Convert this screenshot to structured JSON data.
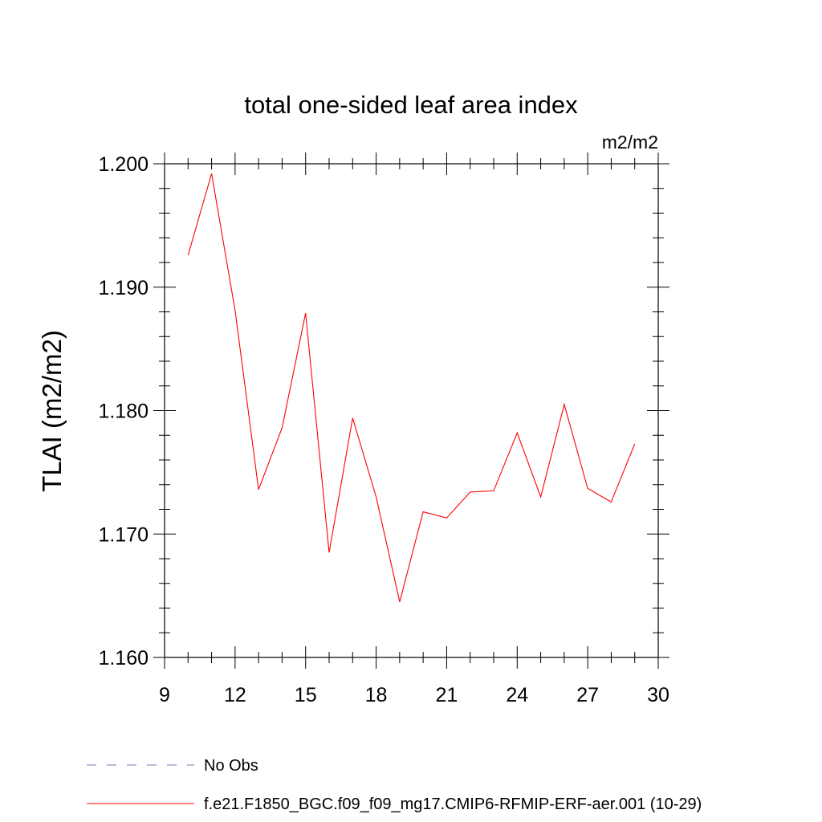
{
  "chart_data": {
    "type": "line",
    "title": "total one-sided leaf area index",
    "units": "m2/m2",
    "ylabel": "TLAI  (m2/m2)",
    "xlabel": "",
    "xlim": [
      9,
      30
    ],
    "ylim": [
      1.16,
      1.2
    ],
    "xticks": [
      9,
      12,
      15,
      18,
      21,
      24,
      27,
      30
    ],
    "xtick_labels": [
      "9",
      "12",
      "15",
      "18",
      "21",
      "24",
      "27",
      "30"
    ],
    "yticks": [
      1.16,
      1.17,
      1.18,
      1.19,
      1.2
    ],
    "ytick_labels": [
      "1.160",
      "1.170",
      "1.180",
      "1.190",
      "1.200"
    ],
    "grid": false,
    "series": [
      {
        "name": "f.e21.F1850_BGC.f09_f09_mg17.CMIP6-RFMIP-ERF-aer.001 (10-29)",
        "color": "#ff0000",
        "x": [
          10,
          11,
          12,
          13,
          14,
          15,
          16,
          17,
          18,
          19,
          20,
          21,
          22,
          23,
          24,
          25,
          26,
          27,
          28,
          29
        ],
        "y": [
          1.1926,
          1.1992,
          1.1881,
          1.1736,
          1.1786,
          1.1879,
          1.1685,
          1.1794,
          1.173,
          1.1645,
          1.1718,
          1.1713,
          1.1734,
          1.1735,
          1.1782,
          1.173,
          1.1805,
          1.1737,
          1.1726,
          1.1773
        ]
      }
    ],
    "legend": [
      {
        "label": "No Obs",
        "color": "#7a6fb0",
        "style": "dashed"
      },
      {
        "label": "f.e21.F1850_BGC.f09_f09_mg17.CMIP6-RFMIP-ERF-aer.001 (10-29)",
        "color": "#ff0000",
        "style": "solid"
      }
    ],
    "legend_position": "bottom"
  }
}
